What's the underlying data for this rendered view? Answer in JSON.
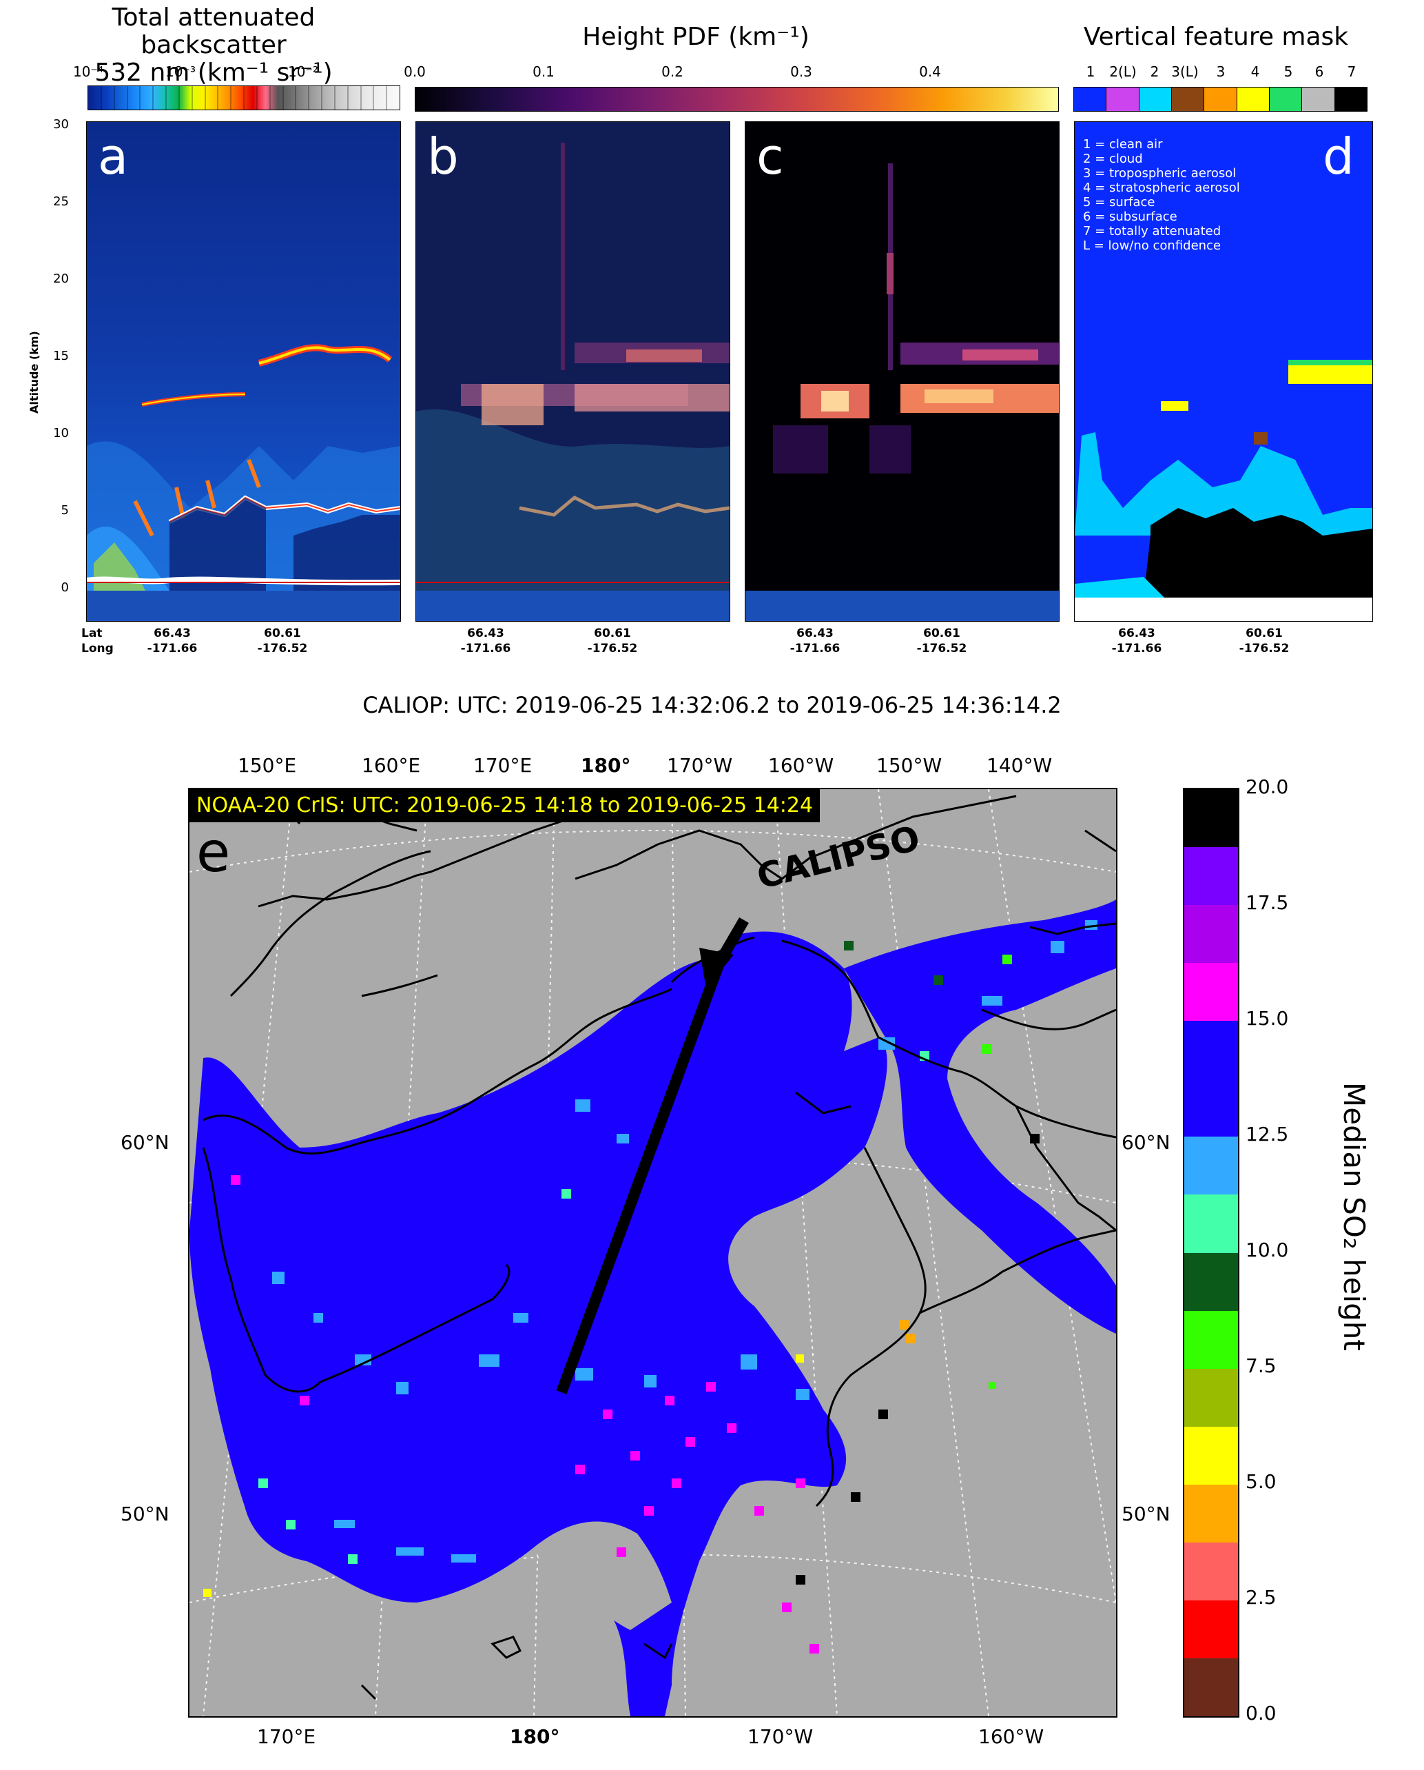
{
  "top": {
    "backscatter_title_1": "Total attenuated backscatter",
    "backscatter_title_2": "532 nm (km⁻¹ sr⁻¹)",
    "backscatter_ticks": [
      "10⁻⁴",
      "10⁻³",
      "10⁻²"
    ],
    "pdf_title": "Height PDF (km⁻¹)",
    "pdf_ticks": [
      "0.0",
      "0.1",
      "0.2",
      "0.3",
      "0.4"
    ],
    "vfm_title": "Vertical feature mask",
    "vfm_ticks": [
      "1",
      "2(L)",
      "2",
      "3(L)",
      "3",
      "4",
      "5",
      "6",
      "7"
    ],
    "vfm_colors": [
      "#0a2bff",
      "#cc44ee",
      "#00d8ff",
      "#8b4513",
      "#ff9900",
      "#ffff00",
      "#22dd66",
      "#bbbbbb",
      "#000000"
    ],
    "panel_labels": [
      "a",
      "b",
      "c",
      "d"
    ],
    "y_axis_label": "Altitude (km)",
    "y_ticks": [
      "30",
      "25",
      "20",
      "15",
      "10",
      "5",
      "0"
    ],
    "x_row_labels": [
      "Lat",
      "Long"
    ],
    "x_ticks": [
      {
        "lat": "66.43",
        "lon": "-171.66"
      },
      {
        "lat": "60.61",
        "lon": "-176.52"
      }
    ],
    "vfm_legend": [
      "1 = clean air",
      "2 = cloud",
      "3 = tropospheric aerosol",
      "4 = stratospheric aerosol",
      "5 = surface",
      "6 = subsurface",
      "7 = totally attenuated",
      "L = low/no confidence"
    ],
    "caliop_caption": "CALIOP: UTC: 2019-06-25 14:32:06.2 to 2019-06-25 14:36:14.2"
  },
  "map": {
    "panel_label": "e",
    "cris_banner": "NOAA-20 CrIS: UTC: 2019-06-25 14:18 to 2019-06-25 14:24",
    "track_label": "CALIPSO",
    "top_lon_ticks": [
      "150°E",
      "160°E",
      "170°E",
      "180°",
      "170°W",
      "160°W",
      "150°W",
      "140°W"
    ],
    "bottom_lon_ticks": [
      "170°E",
      "180°",
      "170°W",
      "160°W"
    ],
    "lat_ticks": [
      "60°N",
      "50°N"
    ],
    "colorbar_label": "Median SO₂ height",
    "colorbar_ticks": [
      "20.0",
      "17.5",
      "15.0",
      "12.5",
      "10.0",
      "7.5",
      "5.0",
      "2.5",
      "0.0"
    ],
    "colorbar_colors": [
      "#000000",
      "#7a00ff",
      "#aa00ee",
      "#ff00ff",
      "#1a00ff",
      "#1a00ff",
      "#33aaff",
      "#44ffaa",
      "#0b5a1a",
      "#33ff00",
      "#99bb00",
      "#ffff00",
      "#ffaa00",
      "#ff6060",
      "#ff0000",
      "#6b2a1a"
    ],
    "land_color": "#aaaaaa",
    "plume_color": "#1a00ff"
  }
}
